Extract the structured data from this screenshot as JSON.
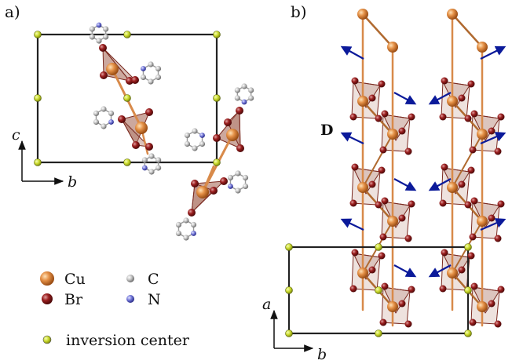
{
  "panel_a": {
    "label": "a)",
    "axis_vertical": "c",
    "axis_horizontal": "b"
  },
  "panel_b": {
    "label": "b)",
    "axis_vertical": "a",
    "axis_horizontal": "b",
    "vector_label": "D"
  },
  "legend": {
    "cu": "Cu",
    "br": "Br",
    "c": "C",
    "n": "N",
    "inversion": "inversion center"
  },
  "colors": {
    "cu": "#d9853a",
    "br": "#8b1c1c",
    "c": "#b9b9b9",
    "n": "#6f74d6",
    "inversion": "#c8d82a",
    "bond": "#d88a4a",
    "polyhedron": "#c89a8a",
    "arrow": "#0b1a9a"
  }
}
